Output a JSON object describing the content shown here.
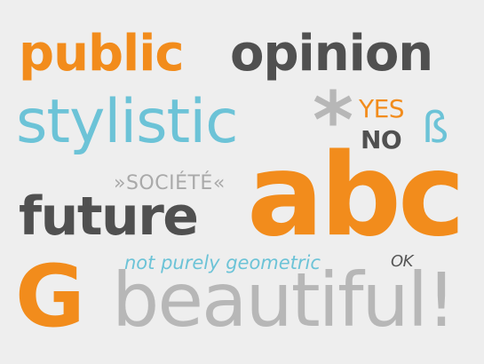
{
  "words": {
    "public": "public",
    "opinion": "opinion",
    "stylistic": "stylistic",
    "asterisk": "*",
    "yes": "YES",
    "no": "NO",
    "beta": "ß",
    "societe": "»SOCIÉTÉ«",
    "future": "future",
    "abc": "abc",
    "not_purely_geometric": "not purely geometric",
    "ok": "OK",
    "g": "G",
    "beautiful": "beautiful!"
  },
  "colors": {
    "orange": "#f28c1c",
    "dark": "#505050",
    "blue": "#6cc3d7",
    "light": "#b7b7b7",
    "background": "#eeeeee"
  }
}
